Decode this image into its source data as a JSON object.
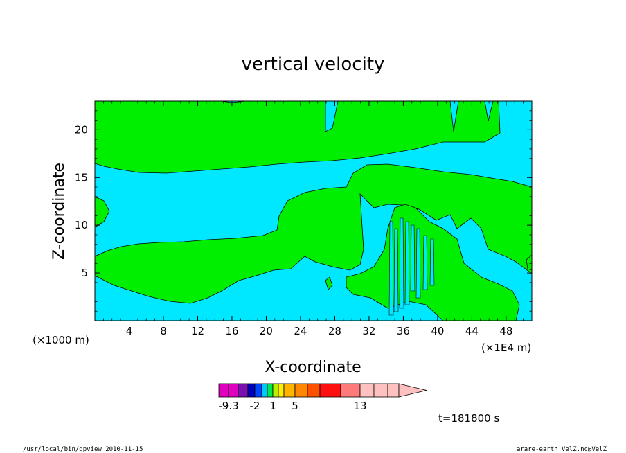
{
  "chart_data": {
    "type": "heatmap",
    "title": "vertical velocity",
    "xlabel": "X-coordinate",
    "ylabel": "Z-coordinate",
    "x_unit_note": "(×1E4 m)",
    "y_unit_note": "(×1000 m)",
    "xlim": [
      0,
      51
    ],
    "ylim": [
      0,
      23
    ],
    "x_ticks": [
      "4",
      "8",
      "12",
      "16",
      "20",
      "24",
      "28",
      "32",
      "36",
      "40",
      "44",
      "48"
    ],
    "y_ticks": [
      "5",
      "10",
      "15",
      "20"
    ],
    "background_color": "#00e8ff",
    "fill_color": "#00ee00",
    "colorbar": {
      "labels": [
        "-9.3",
        "-2",
        "1",
        "5",
        "13"
      ],
      "colors": [
        "#e000c0",
        "#e000c0",
        "#7a10b0",
        "#0000c0",
        "#0048ff",
        "#00c8ff",
        "#00e850",
        "#b8f000",
        "#ffee00",
        "#ffb400",
        "#ff8800",
        "#ff5000",
        "#ff1010",
        "#ff7a7a",
        "#ffc0c0",
        "#ffc0c0",
        "#ffc0c0"
      ]
    },
    "time_label": "t=181800 s",
    "footer_left": "/usr/local/bin/gpview  2010-11-15",
    "footer_right": "arare-earth_VelZ.nc@VelZ"
  }
}
